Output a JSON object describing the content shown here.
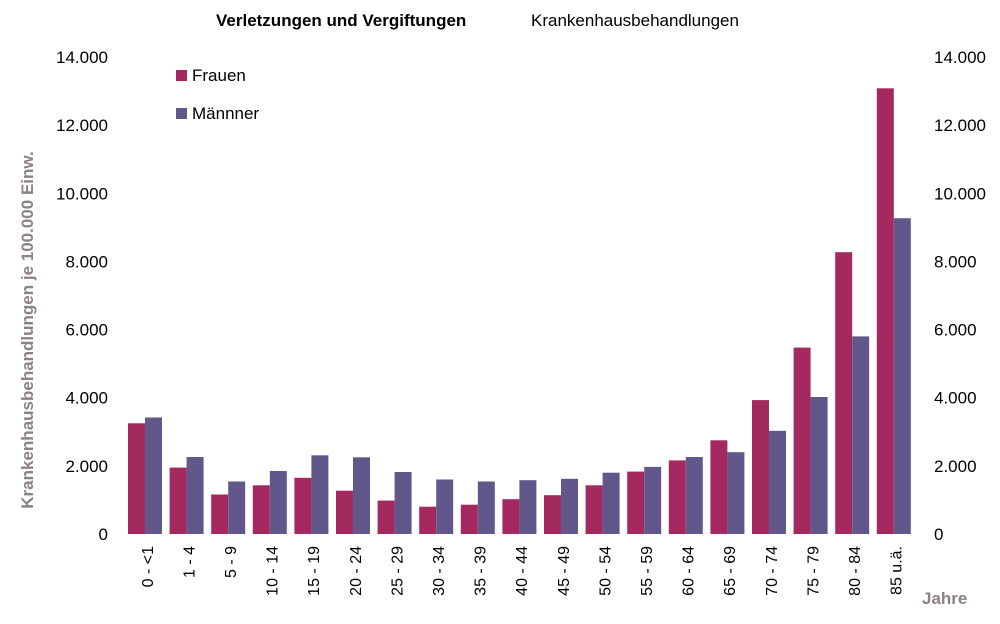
{
  "chart_data": {
    "type": "bar",
    "title": "Verletzungen und Vergiftungen",
    "subtitle": "Krankenhausbehandlungen",
    "ylabel": "Krankenhausbehandlungen je 100.000 Einw.",
    "xlabel": "Jahre",
    "ylim": [
      0,
      14000
    ],
    "yticks": [
      "0",
      "2.000",
      "4.000",
      "6.000",
      "8.000",
      "10.000",
      "12.000",
      "14.000"
    ],
    "ytick_values": [
      0,
      2000,
      4000,
      6000,
      8000,
      10000,
      12000,
      14000
    ],
    "grid": false,
    "legend_position": "top-left",
    "categories": [
      "0 - <1",
      "1 - 4",
      "5 - 9",
      "10 - 14",
      "15 - 19",
      "20 - 24",
      "25 - 29",
      "30 - 34",
      "35 - 39",
      "40 - 44",
      "45 - 49",
      "50 - 54",
      "55 - 59",
      "60 - 64",
      "65 - 69",
      "70 - 74",
      "75 - 79",
      "80 - 84",
      "85 u.ä."
    ],
    "series": [
      {
        "name": "Frauen",
        "color": "#a3295f",
        "values": [
          3250,
          1950,
          1160,
          1430,
          1650,
          1270,
          980,
          800,
          860,
          1020,
          1140,
          1430,
          1830,
          2160,
          2750,
          3930,
          5470,
          8270,
          13080
        ]
      },
      {
        "name": "Männner",
        "color": "#62578a",
        "values": [
          3420,
          2260,
          1540,
          1850,
          2310,
          2250,
          1820,
          1600,
          1540,
          1580,
          1620,
          1800,
          1970,
          2260,
          2400,
          3030,
          4020,
          5800,
          9270
        ]
      }
    ]
  }
}
